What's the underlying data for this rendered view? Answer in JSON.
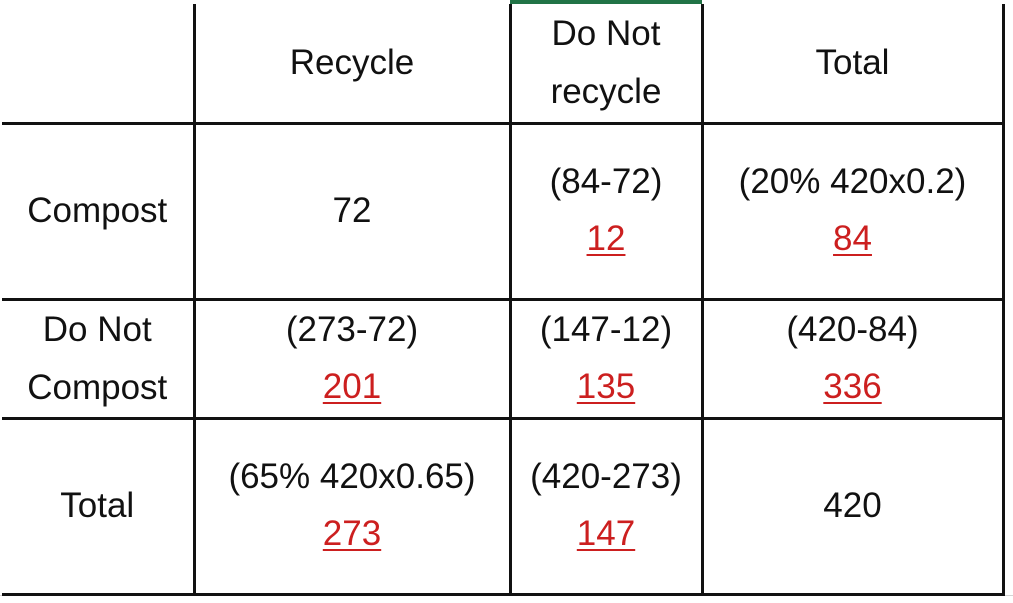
{
  "table": {
    "header": {
      "corner": "",
      "recycle": "Recycle",
      "do_not_recycle_line1": "Do Not",
      "do_not_recycle_line2": "recycle",
      "total": "Total"
    },
    "rows": [
      {
        "label_line1": "Compost",
        "recycle": {
          "value": "72"
        },
        "do_not_recycle": {
          "formula": "(84-72)",
          "answer": "12"
        },
        "total": {
          "formula": "(20%   420x0.2)",
          "answer": "84"
        }
      },
      {
        "label_line1": "Do Not",
        "label_line2": "Compost",
        "recycle": {
          "formula": "(273-72)",
          "answer": "201"
        },
        "do_not_recycle": {
          "formula": "(147-12)",
          "answer": "135"
        },
        "total": {
          "formula": "(420-84)",
          "answer": "336"
        }
      },
      {
        "label_line1": "Total",
        "recycle": {
          "formula": "(65%  420x0.65)",
          "answer": "273"
        },
        "do_not_recycle": {
          "formula": "(420-273)",
          "answer": "147"
        },
        "total": {
          "value": "420"
        }
      }
    ]
  },
  "colors": {
    "answer_red": "#cc1f1f",
    "border": "#111111",
    "active_column_marker": "#217346"
  }
}
